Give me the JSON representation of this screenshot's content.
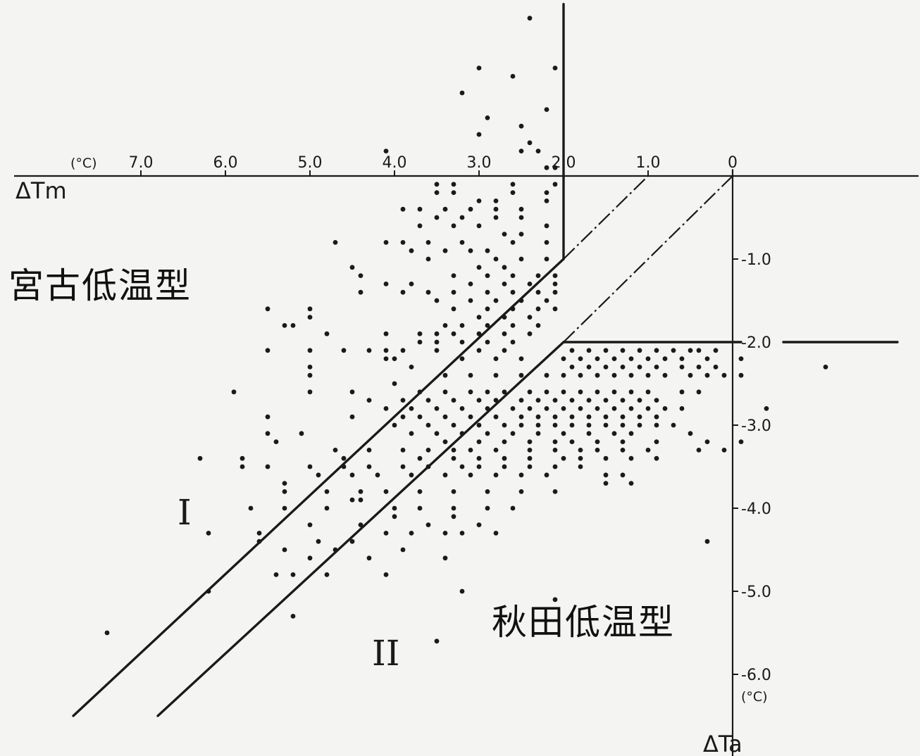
{
  "chart_data": {
    "type": "scatter",
    "title": "",
    "xlabel": "ΔTm",
    "ylabel": "ΔTa",
    "x_unit": "(°C)",
    "y_unit": "(°C)",
    "xlim": [
      8.5,
      -2.2
    ],
    "ylim": [
      -7.0,
      2.2
    ],
    "x_ticks": [
      7.0,
      6.0,
      5.0,
      4.0,
      3.0,
      2.0,
      1.0,
      0
    ],
    "x_tick_labels": [
      "7.0",
      "6.0",
      "5.0",
      "4.0",
      "3.0",
      "2.0",
      "1.0",
      "0"
    ],
    "y_ticks": [
      -1.0,
      -2.0,
      -3.0,
      -4.0,
      -5.0,
      -6.0
    ],
    "y_tick_labels": [
      "-1.0",
      "-2.0",
      "-3.0",
      "-4.0",
      "-5.0",
      "-6.0"
    ],
    "region_labels": [
      "I",
      "II"
    ],
    "annotations": [
      "宮古低温型",
      "秋田低温型"
    ],
    "grid": false,
    "points": [
      [
        2.4,
        1.9
      ],
      [
        2.1,
        1.3
      ],
      [
        3.0,
        1.3
      ],
      [
        2.6,
        1.2
      ],
      [
        3.2,
        1.0
      ],
      [
        2.2,
        0.8
      ],
      [
        2.9,
        0.7
      ],
      [
        3.0,
        0.5
      ],
      [
        2.5,
        0.6
      ],
      [
        4.1,
        0.3
      ],
      [
        2.5,
        0.3
      ],
      [
        2.3,
        0.3
      ],
      [
        2.4,
        0.4
      ],
      [
        2.2,
        0.1
      ],
      [
        2.1,
        0.1
      ],
      [
        3.5,
        -0.1
      ],
      [
        3.3,
        -0.1
      ],
      [
        2.6,
        -0.1
      ],
      [
        2.1,
        -0.1
      ],
      [
        2.2,
        -0.2
      ],
      [
        3.5,
        -0.2
      ],
      [
        3.3,
        -0.2
      ],
      [
        3.0,
        -0.3
      ],
      [
        2.6,
        -0.2
      ],
      [
        2.8,
        -0.3
      ],
      [
        2.2,
        -0.3
      ],
      [
        3.9,
        -0.4
      ],
      [
        3.7,
        -0.4
      ],
      [
        3.4,
        -0.4
      ],
      [
        3.1,
        -0.4
      ],
      [
        2.8,
        -0.4
      ],
      [
        2.5,
        -0.4
      ],
      [
        3.5,
        -0.5
      ],
      [
        3.2,
        -0.5
      ],
      [
        2.8,
        -0.5
      ],
      [
        2.5,
        -0.5
      ],
      [
        2.2,
        -0.6
      ],
      [
        3.7,
        -0.6
      ],
      [
        3.3,
        -0.6
      ],
      [
        3.0,
        -0.6
      ],
      [
        2.7,
        -0.7
      ],
      [
        2.5,
        -0.7
      ],
      [
        4.1,
        -0.8
      ],
      [
        3.9,
        -0.8
      ],
      [
        3.6,
        -0.8
      ],
      [
        3.2,
        -0.8
      ],
      [
        2.9,
        -0.9
      ],
      [
        2.6,
        -0.8
      ],
      [
        2.2,
        -0.8
      ],
      [
        4.7,
        -0.8
      ],
      [
        3.8,
        -0.9
      ],
      [
        3.4,
        -0.9
      ],
      [
        3.1,
        -0.9
      ],
      [
        2.8,
        -1.0
      ],
      [
        2.5,
        -1.0
      ],
      [
        2.2,
        -1.0
      ],
      [
        3.6,
        -1.0
      ],
      [
        3.0,
        -1.1
      ],
      [
        2.7,
        -1.1
      ],
      [
        4.5,
        -1.1
      ],
      [
        3.3,
        -1.2
      ],
      [
        2.9,
        -1.2
      ],
      [
        2.6,
        -1.2
      ],
      [
        2.3,
        -1.2
      ],
      [
        2.1,
        -1.2
      ],
      [
        4.4,
        -1.2
      ],
      [
        3.8,
        -1.3
      ],
      [
        3.1,
        -1.3
      ],
      [
        2.7,
        -1.3
      ],
      [
        2.4,
        -1.3
      ],
      [
        2.1,
        -1.3
      ],
      [
        4.1,
        -1.3
      ],
      [
        4.4,
        -1.4
      ],
      [
        3.9,
        -1.4
      ],
      [
        3.6,
        -1.4
      ],
      [
        3.3,
        -1.4
      ],
      [
        2.9,
        -1.4
      ],
      [
        2.6,
        -1.4
      ],
      [
        2.3,
        -1.4
      ],
      [
        2.1,
        -1.4
      ],
      [
        3.5,
        -1.5
      ],
      [
        3.1,
        -1.5
      ],
      [
        2.8,
        -1.5
      ],
      [
        2.5,
        -1.5
      ],
      [
        2.2,
        -1.5
      ],
      [
        5.5,
        -1.6
      ],
      [
        5.0,
        -1.6
      ],
      [
        3.3,
        -1.6
      ],
      [
        2.9,
        -1.6
      ],
      [
        2.6,
        -1.6
      ],
      [
        2.3,
        -1.6
      ],
      [
        2.1,
        -1.6
      ],
      [
        3.0,
        -1.7
      ],
      [
        2.7,
        -1.7
      ],
      [
        2.4,
        -1.7
      ],
      [
        5.0,
        -1.7
      ],
      [
        5.2,
        -1.8
      ],
      [
        3.4,
        -1.8
      ],
      [
        3.2,
        -1.8
      ],
      [
        2.9,
        -1.8
      ],
      [
        2.6,
        -1.8
      ],
      [
        2.3,
        -1.8
      ],
      [
        5.3,
        -1.8
      ],
      [
        4.1,
        -1.9
      ],
      [
        4.8,
        -1.9
      ],
      [
        3.7,
        -1.9
      ],
      [
        3.5,
        -1.9
      ],
      [
        3.3,
        -1.9
      ],
      [
        3.0,
        -1.9
      ],
      [
        2.7,
        -1.9
      ],
      [
        2.4,
        -1.9
      ],
      [
        3.7,
        -2.0
      ],
      [
        3.5,
        -2.0
      ],
      [
        3.2,
        -2.0
      ],
      [
        2.9,
        -2.0
      ],
      [
        2.6,
        -2.0
      ],
      [
        5.5,
        -2.1
      ],
      [
        5.0,
        -2.1
      ],
      [
        4.6,
        -2.1
      ],
      [
        4.3,
        -2.1
      ],
      [
        4.1,
        -2.1
      ],
      [
        3.9,
        -2.1
      ],
      [
        3.5,
        -2.1
      ],
      [
        3.0,
        -2.1
      ],
      [
        2.7,
        -2.1
      ],
      [
        4.1,
        -2.2
      ],
      [
        4.0,
        -2.2
      ],
      [
        3.2,
        -2.2
      ],
      [
        2.8,
        -2.2
      ],
      [
        2.5,
        -2.2
      ],
      [
        1.9,
        -2.1
      ],
      [
        1.7,
        -2.1
      ],
      [
        1.5,
        -2.1
      ],
      [
        1.3,
        -2.1
      ],
      [
        1.1,
        -2.1
      ],
      [
        0.9,
        -2.1
      ],
      [
        0.7,
        -2.1
      ],
      [
        0.5,
        -2.1
      ],
      [
        0.4,
        -2.1
      ],
      [
        0.2,
        -2.1
      ],
      [
        2.0,
        -2.2
      ],
      [
        1.8,
        -2.2
      ],
      [
        1.6,
        -2.2
      ],
      [
        1.4,
        -2.2
      ],
      [
        1.2,
        -2.2
      ],
      [
        1.0,
        -2.2
      ],
      [
        0.8,
        -2.2
      ],
      [
        0.6,
        -2.2
      ],
      [
        0.3,
        -2.2
      ],
      [
        -0.1,
        -2.2
      ],
      [
        1.9,
        -2.3
      ],
      [
        1.7,
        -2.3
      ],
      [
        1.5,
        -2.3
      ],
      [
        1.3,
        -2.3
      ],
      [
        1.1,
        -2.3
      ],
      [
        0.9,
        -2.3
      ],
      [
        0.6,
        -2.3
      ],
      [
        0.4,
        -2.3
      ],
      [
        0.2,
        -2.3
      ],
      [
        -1.1,
        -2.3
      ],
      [
        5.0,
        -2.4
      ],
      [
        5.0,
        -2.3
      ],
      [
        3.8,
        -2.3
      ],
      [
        3.4,
        -2.4
      ],
      [
        3.1,
        -2.4
      ],
      [
        2.8,
        -2.4
      ],
      [
        2.5,
        -2.4
      ],
      [
        2.2,
        -2.4
      ],
      [
        2.0,
        -2.4
      ],
      [
        1.8,
        -2.4
      ],
      [
        1.6,
        -2.4
      ],
      [
        1.4,
        -2.4
      ],
      [
        1.2,
        -2.4
      ],
      [
        1.0,
        -2.4
      ],
      [
        0.8,
        -2.4
      ],
      [
        0.5,
        -2.4
      ],
      [
        0.3,
        -2.4
      ],
      [
        0.1,
        -2.4
      ],
      [
        -0.1,
        -2.4
      ],
      [
        5.9,
        -2.6
      ],
      [
        5.0,
        -2.6
      ],
      [
        4.5,
        -2.6
      ],
      [
        4.0,
        -2.5
      ],
      [
        3.7,
        -2.6
      ],
      [
        3.4,
        -2.6
      ],
      [
        3.1,
        -2.6
      ],
      [
        2.9,
        -2.6
      ],
      [
        2.7,
        -2.6
      ],
      [
        2.4,
        -2.6
      ],
      [
        2.2,
        -2.6
      ],
      [
        2.0,
        -2.6
      ],
      [
        1.8,
        -2.6
      ],
      [
        1.6,
        -2.6
      ],
      [
        1.4,
        -2.6
      ],
      [
        1.2,
        -2.6
      ],
      [
        1.0,
        -2.6
      ],
      [
        0.6,
        -2.6
      ],
      [
        0.4,
        -2.6
      ],
      [
        4.3,
        -2.7
      ],
      [
        3.9,
        -2.7
      ],
      [
        3.6,
        -2.7
      ],
      [
        3.3,
        -2.7
      ],
      [
        3.0,
        -2.7
      ],
      [
        2.8,
        -2.7
      ],
      [
        2.5,
        -2.7
      ],
      [
        2.3,
        -2.7
      ],
      [
        2.1,
        -2.7
      ],
      [
        1.9,
        -2.7
      ],
      [
        1.7,
        -2.7
      ],
      [
        1.5,
        -2.7
      ],
      [
        1.3,
        -2.7
      ],
      [
        1.1,
        -2.7
      ],
      [
        0.9,
        -2.7
      ],
      [
        4.1,
        -2.8
      ],
      [
        3.8,
        -2.8
      ],
      [
        3.5,
        -2.8
      ],
      [
        3.2,
        -2.8
      ],
      [
        2.9,
        -2.8
      ],
      [
        2.6,
        -2.8
      ],
      [
        2.4,
        -2.8
      ],
      [
        2.2,
        -2.8
      ],
      [
        2.0,
        -2.8
      ],
      [
        1.8,
        -2.8
      ],
      [
        1.6,
        -2.8
      ],
      [
        1.4,
        -2.8
      ],
      [
        1.2,
        -2.8
      ],
      [
        1.0,
        -2.8
      ],
      [
        0.8,
        -2.8
      ],
      [
        0.6,
        -2.8
      ],
      [
        -0.4,
        -2.8
      ],
      [
        5.5,
        -2.9
      ],
      [
        4.5,
        -2.9
      ],
      [
        3.9,
        -2.9
      ],
      [
        3.7,
        -2.9
      ],
      [
        3.4,
        -2.9
      ],
      [
        3.1,
        -2.9
      ],
      [
        2.8,
        -2.9
      ],
      [
        2.5,
        -2.9
      ],
      [
        2.3,
        -2.9
      ],
      [
        2.1,
        -2.9
      ],
      [
        1.9,
        -2.9
      ],
      [
        1.7,
        -2.9
      ],
      [
        1.5,
        -2.9
      ],
      [
        1.3,
        -2.9
      ],
      [
        1.1,
        -2.9
      ],
      [
        0.9,
        -2.9
      ],
      [
        5.5,
        -3.1
      ],
      [
        4.0,
        -3.0
      ],
      [
        3.6,
        -3.0
      ],
      [
        3.3,
        -3.0
      ],
      [
        3.0,
        -3.0
      ],
      [
        2.7,
        -3.0
      ],
      [
        2.5,
        -3.0
      ],
      [
        2.3,
        -3.0
      ],
      [
        2.1,
        -3.0
      ],
      [
        1.9,
        -3.0
      ],
      [
        1.7,
        -3.0
      ],
      [
        1.5,
        -3.0
      ],
      [
        1.3,
        -3.0
      ],
      [
        1.1,
        -3.0
      ],
      [
        0.9,
        -3.0
      ],
      [
        0.7,
        -3.0
      ],
      [
        5.1,
        -3.1
      ],
      [
        3.8,
        -3.1
      ],
      [
        3.5,
        -3.1
      ],
      [
        3.2,
        -3.1
      ],
      [
        2.9,
        -3.1
      ],
      [
        2.6,
        -3.1
      ],
      [
        2.3,
        -3.1
      ],
      [
        2.0,
        -3.1
      ],
      [
        1.7,
        -3.1
      ],
      [
        1.4,
        -3.1
      ],
      [
        1.2,
        -3.1
      ],
      [
        0.5,
        -3.1
      ],
      [
        5.4,
        -3.2
      ],
      [
        3.4,
        -3.2
      ],
      [
        3.0,
        -3.2
      ],
      [
        2.7,
        -3.2
      ],
      [
        2.4,
        -3.2
      ],
      [
        2.1,
        -3.2
      ],
      [
        1.9,
        -3.2
      ],
      [
        1.6,
        -3.2
      ],
      [
        1.3,
        -3.2
      ],
      [
        0.9,
        -3.2
      ],
      [
        0.3,
        -3.2
      ],
      [
        -0.1,
        -3.2
      ],
      [
        6.3,
        -3.4
      ],
      [
        5.8,
        -3.4
      ],
      [
        4.7,
        -3.3
      ],
      [
        4.3,
        -3.3
      ],
      [
        3.9,
        -3.3
      ],
      [
        3.6,
        -3.3
      ],
      [
        3.3,
        -3.3
      ],
      [
        3.1,
        -3.3
      ],
      [
        2.8,
        -3.3
      ],
      [
        2.4,
        -3.3
      ],
      [
        2.1,
        -3.3
      ],
      [
        1.8,
        -3.3
      ],
      [
        1.6,
        -3.3
      ],
      [
        1.3,
        -3.3
      ],
      [
        1.0,
        -3.3
      ],
      [
        0.4,
        -3.3
      ],
      [
        0.1,
        -3.3
      ],
      [
        4.6,
        -3.4
      ],
      [
        3.7,
        -3.4
      ],
      [
        3.3,
        -3.4
      ],
      [
        3.0,
        -3.4
      ],
      [
        2.7,
        -3.4
      ],
      [
        2.4,
        -3.4
      ],
      [
        2.0,
        -3.4
      ],
      [
        1.8,
        -3.4
      ],
      [
        1.5,
        -3.4
      ],
      [
        1.2,
        -3.4
      ],
      [
        0.9,
        -3.4
      ],
      [
        5.8,
        -3.5
      ],
      [
        5.5,
        -3.5
      ],
      [
        5.0,
        -3.5
      ],
      [
        4.6,
        -3.5
      ],
      [
        4.3,
        -3.5
      ],
      [
        3.9,
        -3.5
      ],
      [
        3.6,
        -3.5
      ],
      [
        3.2,
        -3.5
      ],
      [
        3.0,
        -3.5
      ],
      [
        2.7,
        -3.5
      ],
      [
        2.4,
        -3.5
      ],
      [
        2.1,
        -3.5
      ],
      [
        1.8,
        -3.5
      ],
      [
        5.3,
        -3.7
      ],
      [
        4.9,
        -3.6
      ],
      [
        4.5,
        -3.6
      ],
      [
        4.2,
        -3.6
      ],
      [
        3.8,
        -3.6
      ],
      [
        3.4,
        -3.6
      ],
      [
        3.1,
        -3.6
      ],
      [
        2.8,
        -3.6
      ],
      [
        2.5,
        -3.6
      ],
      [
        2.2,
        -3.6
      ],
      [
        1.5,
        -3.6
      ],
      [
        1.3,
        -3.6
      ],
      [
        5.3,
        -3.8
      ],
      [
        4.8,
        -3.8
      ],
      [
        4.4,
        -3.8
      ],
      [
        4.1,
        -3.8
      ],
      [
        3.7,
        -3.8
      ],
      [
        3.3,
        -3.8
      ],
      [
        2.9,
        -3.8
      ],
      [
        2.5,
        -3.8
      ],
      [
        2.1,
        -3.8
      ],
      [
        1.5,
        -3.7
      ],
      [
        1.2,
        -3.7
      ],
      [
        5.7,
        -4.0
      ],
      [
        5.3,
        -4.0
      ],
      [
        4.8,
        -4.0
      ],
      [
        4.5,
        -3.9
      ],
      [
        4.4,
        -3.9
      ],
      [
        4.0,
        -4.0
      ],
      [
        3.7,
        -4.0
      ],
      [
        3.3,
        -4.0
      ],
      [
        2.9,
        -4.0
      ],
      [
        2.6,
        -4.0
      ],
      [
        6.2,
        -4.3
      ],
      [
        5.6,
        -4.3
      ],
      [
        5.0,
        -4.2
      ],
      [
        4.4,
        -4.2
      ],
      [
        4.0,
        -4.1
      ],
      [
        3.6,
        -4.2
      ],
      [
        3.3,
        -4.1
      ],
      [
        3.0,
        -4.2
      ],
      [
        5.6,
        -4.4
      ],
      [
        5.3,
        -4.5
      ],
      [
        4.9,
        -4.4
      ],
      [
        4.5,
        -4.4
      ],
      [
        4.1,
        -4.3
      ],
      [
        3.8,
        -4.3
      ],
      [
        3.4,
        -4.3
      ],
      [
        3.2,
        -4.3
      ],
      [
        2.8,
        -4.3
      ],
      [
        0.3,
        -4.4
      ],
      [
        5.0,
        -4.6
      ],
      [
        4.7,
        -4.5
      ],
      [
        4.3,
        -4.6
      ],
      [
        3.9,
        -4.5
      ],
      [
        3.4,
        -4.6
      ],
      [
        6.2,
        -5.0
      ],
      [
        5.4,
        -4.8
      ],
      [
        5.2,
        -4.8
      ],
      [
        4.8,
        -4.8
      ],
      [
        4.1,
        -4.8
      ],
      [
        3.2,
        -5.0
      ],
      [
        2.1,
        -5.1
      ],
      [
        5.2,
        -5.3
      ],
      [
        7.4,
        -5.5
      ],
      [
        3.5,
        -5.6
      ]
    ]
  },
  "axes": {
    "x_name": "ΔTm",
    "x_unit": "(°C)",
    "y_name": "ΔTa",
    "y_unit": "(°C)"
  },
  "regions": {
    "left_numeral": "I",
    "right_numeral": "II",
    "miyako_label": "宮古低温型",
    "akita_label": "秋田低温型"
  }
}
